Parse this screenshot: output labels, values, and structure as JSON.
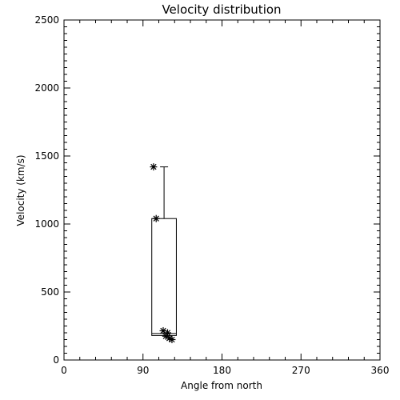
{
  "chart_data": {
    "type": "scatter",
    "title": "Velocity distribution",
    "xlabel": "Angle from north",
    "ylabel": "Velocity (km/s)",
    "xlim": [
      0,
      360
    ],
    "ylim": [
      0,
      2500
    ],
    "x_ticks": [
      0,
      90,
      180,
      270,
      360
    ],
    "y_ticks": [
      0,
      500,
      1000,
      1500,
      2000,
      2500
    ],
    "grid": false,
    "legend": "none",
    "marker": "asterisk",
    "series": [
      {
        "points": [
          {
            "x": 102,
            "y": 1420
          },
          {
            "x": 105,
            "y": 1040
          },
          {
            "x": 113,
            "y": 215
          },
          {
            "x": 118,
            "y": 200
          },
          {
            "x": 116,
            "y": 175
          },
          {
            "x": 120,
            "y": 160
          },
          {
            "x": 123,
            "y": 150
          }
        ]
      }
    ],
    "boxplot": {
      "x_min": 100,
      "x_max": 128,
      "whisker_x": 114,
      "whisker_low": 180,
      "q1": 180,
      "median": 195,
      "q3": 1040,
      "whisker_high": 1420
    }
  }
}
